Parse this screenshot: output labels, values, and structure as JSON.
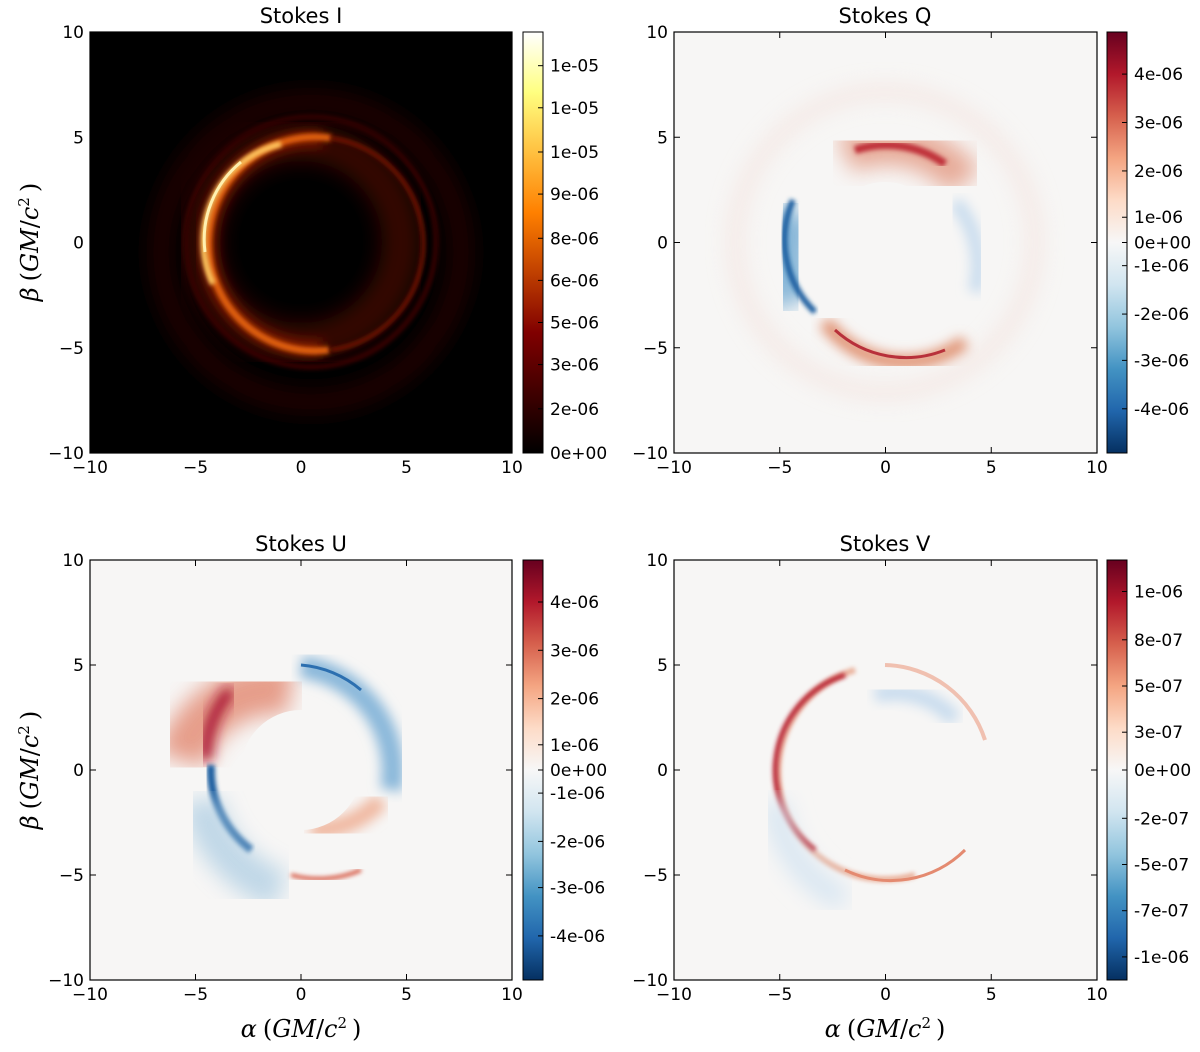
{
  "chart_data": [
    {
      "type": "heatmap",
      "title": "Stokes I",
      "colormap": "afmhot",
      "xlim": [
        -10,
        10
      ],
      "ylim": [
        -10,
        10
      ],
      "xticks": [
        "−10",
        "−5",
        "0",
        "5",
        "10"
      ],
      "yticks": [
        "10",
        "5",
        "0",
        "−5",
        "−10"
      ],
      "clim": [
        0,
        1.15e-05
      ],
      "colorbar_ticks": [
        "1e-05",
        "1e-05",
        "1e-05",
        "9e-06",
        "8e-06",
        "6e-06",
        "5e-06",
        "3e-06",
        "2e-06",
        "0e+00"
      ]
    },
    {
      "type": "heatmap",
      "title": "Stokes Q",
      "colormap": "RdBu_r",
      "xlim": [
        -10,
        10
      ],
      "ylim": [
        -10,
        10
      ],
      "xticks": [
        "−10",
        "−5",
        "0",
        "5",
        "10"
      ],
      "yticks": [
        "10",
        "5",
        "0",
        "−5",
        "−10"
      ],
      "clim": [
        -4.4e-06,
        4.4e-06
      ],
      "colorbar_ticks": [
        "4e-06",
        "3e-06",
        "2e-06",
        "1e-06",
        "0e+00",
        "-1e-06",
        "-2e-06",
        "-3e-06",
        "-4e-06"
      ]
    },
    {
      "type": "heatmap",
      "title": "Stokes U",
      "colormap": "RdBu_r",
      "xlim": [
        -10,
        10
      ],
      "ylim": [
        -10,
        10
      ],
      "xticks": [
        "−10",
        "−5",
        "0",
        "5",
        "10"
      ],
      "yticks": [
        "10",
        "5",
        "0",
        "−5",
        "−10"
      ],
      "clim": [
        -4.4e-06,
        4.4e-06
      ],
      "colorbar_ticks": [
        "4e-06",
        "3e-06",
        "2e-06",
        "1e-06",
        "0e+00",
        "-1e-06",
        "-2e-06",
        "-3e-06",
        "-4e-06"
      ]
    },
    {
      "type": "heatmap",
      "title": "Stokes V",
      "colormap": "RdBu_r",
      "xlim": [
        -10,
        10
      ],
      "ylim": [
        -10,
        10
      ],
      "xticks": [
        "−10",
        "−5",
        "0",
        "5",
        "10"
      ],
      "yticks": [
        "10",
        "5",
        "0",
        "−5",
        "−10"
      ],
      "clim": [
        -1.1e-06,
        1.1e-06
      ],
      "colorbar_ticks": [
        "1e-06",
        "8e-07",
        "5e-07",
        "3e-07",
        "0e+00",
        "-2e-07",
        "-5e-07",
        "-7e-07",
        "-1e-06"
      ]
    }
  ],
  "axis_labels": {
    "beta": "β",
    "alpha": "α",
    "unit_open": "(",
    "unit_g": "GM",
    "unit_slash": "/",
    "unit_c": "c",
    "unit_exp": "2",
    "unit_close": ")"
  },
  "colors": {
    "afmhot": [
      "#000000",
      "#400000",
      "#800000",
      "#c04000",
      "#ff8000",
      "#ffc040",
      "#ffff80",
      "#ffffff"
    ],
    "rdbu": [
      "#053061",
      "#2166ac",
      "#4393c3",
      "#92c5de",
      "#d1e5f0",
      "#f7f7f7",
      "#fddbc7",
      "#f4a582",
      "#d6604d",
      "#b2182b",
      "#67001f"
    ]
  }
}
